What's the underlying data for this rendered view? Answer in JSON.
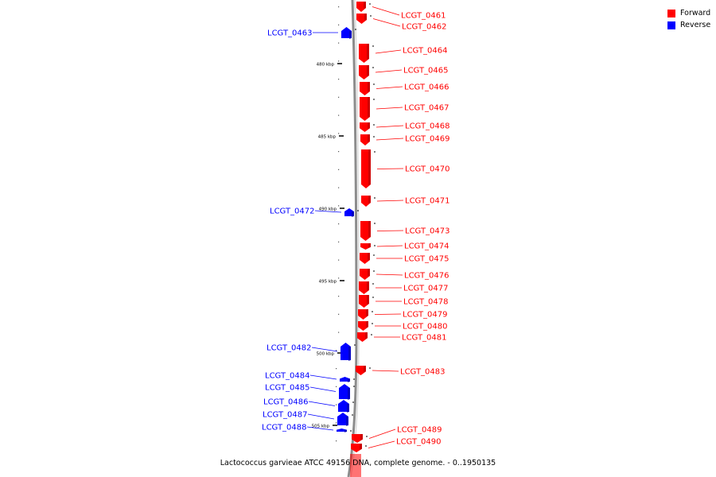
{
  "caption": "Lactococcus garvieae ATCC 49156 DNA, complete genome. - 0..1950135",
  "legend": [
    {
      "label": "Forward",
      "color": "#ff0000"
    },
    {
      "label": "Reverse",
      "color": "#0000ff"
    }
  ],
  "colors": {
    "forward": "#ff0000",
    "reverse": "#0000ff",
    "forward_dark": "#b80000",
    "reverse_dark": "#0000a8",
    "backbone": "#8c8c8c"
  },
  "scale": {
    "ticks": [
      {
        "kbp": 480,
        "label": "480 kbp"
      },
      {
        "kbp": 485,
        "label": "485 kbp"
      },
      {
        "kbp": 490,
        "label": "490 kbp"
      },
      {
        "kbp": 495,
        "label": "495 kbp"
      },
      {
        "kbp": 500,
        "label": "500 kbp"
      },
      {
        "kbp": 505,
        "label": "505 kbp"
      }
    ]
  },
  "genes": [
    {
      "name": "LCGT_0461",
      "strand": "forward"
    },
    {
      "name": "LCGT_0462",
      "strand": "forward"
    },
    {
      "name": "LCGT_0463",
      "strand": "reverse"
    },
    {
      "name": "LCGT_0464",
      "strand": "forward"
    },
    {
      "name": "LCGT_0465",
      "strand": "forward"
    },
    {
      "name": "LCGT_0466",
      "strand": "forward"
    },
    {
      "name": "LCGT_0467",
      "strand": "forward"
    },
    {
      "name": "LCGT_0468",
      "strand": "forward"
    },
    {
      "name": "LCGT_0469",
      "strand": "forward"
    },
    {
      "name": "LCGT_0470",
      "strand": "forward"
    },
    {
      "name": "LCGT_0471",
      "strand": "forward"
    },
    {
      "name": "LCGT_0472",
      "strand": "reverse"
    },
    {
      "name": "LCGT_0473",
      "strand": "forward"
    },
    {
      "name": "LCGT_0474",
      "strand": "forward"
    },
    {
      "name": "LCGT_0475",
      "strand": "forward"
    },
    {
      "name": "LCGT_0476",
      "strand": "forward"
    },
    {
      "name": "LCGT_0477",
      "strand": "forward"
    },
    {
      "name": "LCGT_0478",
      "strand": "forward"
    },
    {
      "name": "LCGT_0479",
      "strand": "forward"
    },
    {
      "name": "LCGT_0480",
      "strand": "forward"
    },
    {
      "name": "LCGT_0481",
      "strand": "forward"
    },
    {
      "name": "LCGT_0482",
      "strand": "reverse"
    },
    {
      "name": "LCGT_0483",
      "strand": "forward"
    },
    {
      "name": "LCGT_0484",
      "strand": "reverse"
    },
    {
      "name": "LCGT_0485",
      "strand": "reverse"
    },
    {
      "name": "LCGT_0486",
      "strand": "reverse"
    },
    {
      "name": "LCGT_0487",
      "strand": "reverse"
    },
    {
      "name": "LCGT_0488",
      "strand": "reverse"
    },
    {
      "name": "LCGT_0489",
      "strand": "forward"
    },
    {
      "name": "LCGT_0490",
      "strand": "forward"
    }
  ]
}
